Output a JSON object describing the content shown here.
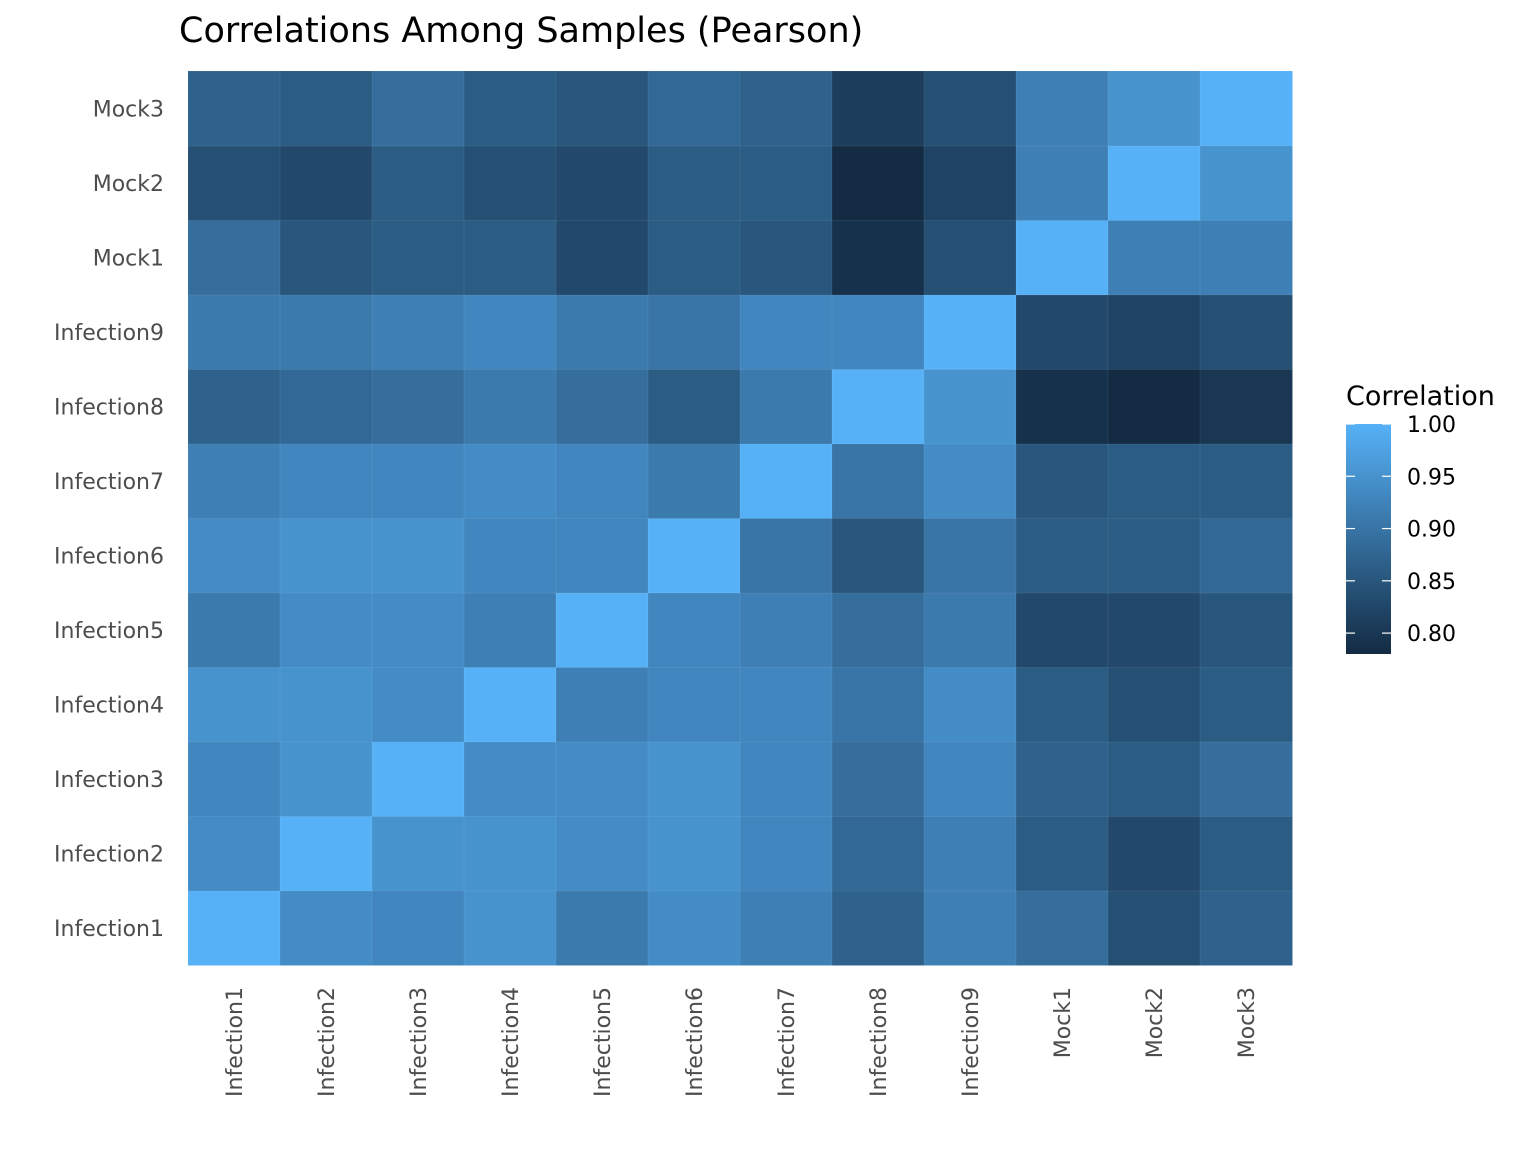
{
  "chart_data": {
    "type": "heatmap",
    "title": "Correlations Among Samples (Pearson)",
    "xlabel": "",
    "ylabel": "",
    "x_categories": [
      "Infection1",
      "Infection2",
      "Infection3",
      "Infection4",
      "Infection5",
      "Infection6",
      "Infection7",
      "Infection8",
      "Infection9",
      "Mock1",
      "Mock2",
      "Mock3"
    ],
    "y_categories": [
      "Infection1",
      "Infection2",
      "Infection3",
      "Infection4",
      "Infection5",
      "Infection6",
      "Infection7",
      "Infection8",
      "Infection9",
      "Mock1",
      "Mock2",
      "Mock3"
    ],
    "values": [
      [
        1.0,
        0.94,
        0.93,
        0.95,
        0.91,
        0.94,
        0.92,
        0.87,
        0.92,
        0.89,
        0.84,
        0.87
      ],
      [
        0.94,
        1.0,
        0.95,
        0.95,
        0.94,
        0.95,
        0.93,
        0.88,
        0.92,
        0.86,
        0.83,
        0.86
      ],
      [
        0.93,
        0.95,
        1.0,
        0.94,
        0.94,
        0.95,
        0.93,
        0.89,
        0.93,
        0.87,
        0.86,
        0.89
      ],
      [
        0.95,
        0.95,
        0.94,
        1.0,
        0.92,
        0.93,
        0.93,
        0.9,
        0.94,
        0.86,
        0.84,
        0.86
      ],
      [
        0.91,
        0.94,
        0.94,
        0.92,
        1.0,
        0.93,
        0.92,
        0.89,
        0.91,
        0.83,
        0.83,
        0.85
      ],
      [
        0.94,
        0.95,
        0.95,
        0.93,
        0.93,
        1.0,
        0.9,
        0.85,
        0.9,
        0.86,
        0.86,
        0.88
      ],
      [
        0.92,
        0.93,
        0.93,
        0.94,
        0.93,
        0.91,
        1.0,
        0.9,
        0.94,
        0.85,
        0.86,
        0.86
      ],
      [
        0.87,
        0.88,
        0.89,
        0.91,
        0.89,
        0.86,
        0.91,
        1.0,
        0.95,
        0.79,
        0.78,
        0.8
      ],
      [
        0.91,
        0.91,
        0.92,
        0.93,
        0.91,
        0.9,
        0.93,
        0.93,
        1.0,
        0.83,
        0.82,
        0.84
      ],
      [
        0.89,
        0.85,
        0.86,
        0.86,
        0.83,
        0.86,
        0.85,
        0.79,
        0.84,
        1.0,
        0.92,
        0.92
      ],
      [
        0.84,
        0.83,
        0.86,
        0.84,
        0.83,
        0.86,
        0.86,
        0.78,
        0.82,
        0.92,
        1.0,
        0.95
      ],
      [
        0.87,
        0.86,
        0.89,
        0.86,
        0.85,
        0.88,
        0.87,
        0.81,
        0.84,
        0.92,
        0.95,
        1.0
      ]
    ],
    "value_range": [
      0.78,
      1.0
    ],
    "color_low": "#132B43",
    "color_high": "#56B1F7",
    "grid": false,
    "legend": {
      "title": "Correlation",
      "ticks": [
        "1.00",
        "0.95",
        "0.90",
        "0.85",
        "0.80"
      ],
      "tick_values": [
        1.0,
        0.95,
        0.9,
        0.85,
        0.8
      ],
      "placement": "right"
    }
  }
}
